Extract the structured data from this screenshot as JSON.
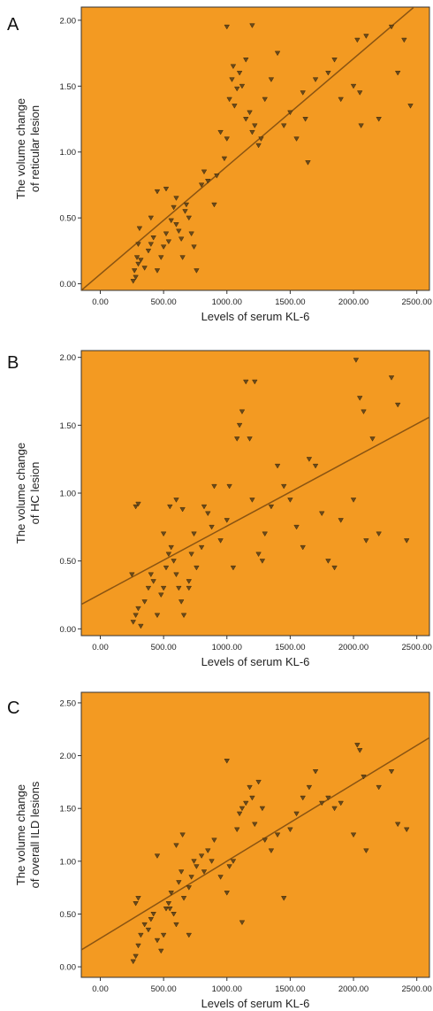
{
  "colors": {
    "plot_background": "#f39a22",
    "marker": "#6b4a1a",
    "fit_line": "#8a5412",
    "axis": "#333333"
  },
  "chart_data": [
    {
      "panel": "A",
      "type": "scatter",
      "xlabel": "Levels of serum KL-6",
      "ylabel": [
        "The volume change",
        "of reticular lesion"
      ],
      "xlim": [
        -150,
        2600
      ],
      "ylim": [
        -0.05,
        2.1
      ],
      "xticks": [
        0,
        500,
        1000,
        1500,
        2000,
        2500
      ],
      "xtick_labels": [
        "0.00",
        "500.00",
        "1000.00",
        "1500.00",
        "2000.00",
        "2500.00"
      ],
      "yticks": [
        0,
        0.5,
        1.0,
        1.5,
        2.0
      ],
      "ytick_labels": [
        "0.00",
        "0.50",
        "1.00",
        "1.50",
        "2.00"
      ],
      "grid": false,
      "fit_line": {
        "x": [
          -150,
          2600
        ],
        "y": [
          -0.05,
          2.2
        ]
      },
      "points": [
        [
          260,
          0.02
        ],
        [
          280,
          0.05
        ],
        [
          270,
          0.1
        ],
        [
          300,
          0.15
        ],
        [
          290,
          0.2
        ],
        [
          320,
          0.18
        ],
        [
          350,
          0.12
        ],
        [
          380,
          0.25
        ],
        [
          400,
          0.3
        ],
        [
          420,
          0.35
        ],
        [
          300,
          0.3
        ],
        [
          310,
          0.42
        ],
        [
          450,
          0.1
        ],
        [
          480,
          0.2
        ],
        [
          500,
          0.28
        ],
        [
          520,
          0.38
        ],
        [
          540,
          0.32
        ],
        [
          560,
          0.48
        ],
        [
          580,
          0.58
        ],
        [
          600,
          0.45
        ],
        [
          620,
          0.4
        ],
        [
          640,
          0.34
        ],
        [
          650,
          0.2
        ],
        [
          670,
          0.55
        ],
        [
          700,
          0.5
        ],
        [
          720,
          0.38
        ],
        [
          740,
          0.28
        ],
        [
          760,
          0.1
        ],
        [
          400,
          0.5
        ],
        [
          450,
          0.7
        ],
        [
          520,
          0.72
        ],
        [
          600,
          0.65
        ],
        [
          680,
          0.6
        ],
        [
          800,
          0.75
        ],
        [
          820,
          0.85
        ],
        [
          850,
          0.78
        ],
        [
          900,
          0.6
        ],
        [
          920,
          0.82
        ],
        [
          950,
          1.15
        ],
        [
          980,
          0.95
        ],
        [
          1000,
          1.1
        ],
        [
          1020,
          1.4
        ],
        [
          1040,
          1.55
        ],
        [
          1060,
          1.35
        ],
        [
          1080,
          1.48
        ],
        [
          1100,
          1.6
        ],
        [
          1120,
          1.5
        ],
        [
          1150,
          1.25
        ],
        [
          1180,
          1.3
        ],
        [
          1200,
          1.15
        ],
        [
          1220,
          1.2
        ],
        [
          1250,
          1.05
        ],
        [
          1270,
          1.1
        ],
        [
          1300,
          1.4
        ],
        [
          1350,
          1.55
        ],
        [
          1400,
          1.75
        ],
        [
          1450,
          1.2
        ],
        [
          1500,
          1.3
        ],
        [
          1550,
          1.1
        ],
        [
          1600,
          1.45
        ],
        [
          1620,
          1.25
        ],
        [
          1640,
          0.92
        ],
        [
          1700,
          1.55
        ],
        [
          1800,
          1.6
        ],
        [
          1850,
          1.7
        ],
        [
          1900,
          1.4
        ],
        [
          2000,
          1.5
        ],
        [
          2030,
          1.85
        ],
        [
          2050,
          1.45
        ],
        [
          2060,
          1.2
        ],
        [
          2100,
          1.88
        ],
        [
          2200,
          1.25
        ],
        [
          2300,
          1.95
        ],
        [
          2350,
          1.6
        ],
        [
          2400,
          1.85
        ],
        [
          2450,
          1.35
        ],
        [
          1000,
          1.95
        ],
        [
          1200,
          1.96
        ],
        [
          1050,
          1.65
        ],
        [
          1150,
          1.7
        ]
      ]
    },
    {
      "panel": "B",
      "type": "scatter",
      "xlabel": "Levels of serum KL-6",
      "ylabel": [
        "The volume change",
        "of HC lesion"
      ],
      "xlim": [
        -150,
        2600
      ],
      "ylim": [
        -0.05,
        2.05
      ],
      "xticks": [
        0,
        500,
        1000,
        1500,
        2000,
        2500
      ],
      "xtick_labels": [
        "0.00",
        "500.00",
        "1000.00",
        "1500.00",
        "2000.00",
        "2500.00"
      ],
      "yticks": [
        0,
        0.5,
        1.0,
        1.5,
        2.0
      ],
      "ytick_labels": [
        "0.00",
        "0.50",
        "1.00",
        "1.50",
        "2.00"
      ],
      "grid": false,
      "fit_line": {
        "x": [
          -150,
          2600
        ],
        "y": [
          0.18,
          1.56
        ]
      },
      "points": [
        [
          260,
          0.05
        ],
        [
          280,
          0.1
        ],
        [
          300,
          0.15
        ],
        [
          320,
          0.02
        ],
        [
          350,
          0.2
        ],
        [
          380,
          0.3
        ],
        [
          400,
          0.4
        ],
        [
          420,
          0.35
        ],
        [
          450,
          0.1
        ],
        [
          480,
          0.25
        ],
        [
          500,
          0.3
        ],
        [
          520,
          0.45
        ],
        [
          540,
          0.55
        ],
        [
          560,
          0.6
        ],
        [
          580,
          0.5
        ],
        [
          600,
          0.4
        ],
        [
          620,
          0.3
        ],
        [
          640,
          0.2
        ],
        [
          660,
          0.1
        ],
        [
          700,
          0.35
        ],
        [
          720,
          0.55
        ],
        [
          740,
          0.7
        ],
        [
          760,
          0.45
        ],
        [
          800,
          0.6
        ],
        [
          820,
          0.9
        ],
        [
          850,
          0.85
        ],
        [
          880,
          0.75
        ],
        [
          900,
          1.05
        ],
        [
          950,
          0.65
        ],
        [
          1000,
          0.8
        ],
        [
          1020,
          1.05
        ],
        [
          1050,
          0.45
        ],
        [
          1080,
          1.4
        ],
        [
          1100,
          1.5
        ],
        [
          1120,
          1.6
        ],
        [
          1150,
          1.82
        ],
        [
          1180,
          1.4
        ],
        [
          1200,
          0.95
        ],
        [
          1220,
          1.82
        ],
        [
          1250,
          0.55
        ],
        [
          1280,
          0.5
        ],
        [
          1300,
          0.7
        ],
        [
          1350,
          0.9
        ],
        [
          1400,
          1.2
        ],
        [
          1450,
          1.05
        ],
        [
          1500,
          0.95
        ],
        [
          1550,
          0.75
        ],
        [
          1600,
          0.6
        ],
        [
          1650,
          1.25
        ],
        [
          1700,
          1.2
        ],
        [
          1750,
          0.85
        ],
        [
          1800,
          0.5
        ],
        [
          1850,
          0.45
        ],
        [
          1900,
          0.8
        ],
        [
          2000,
          0.95
        ],
        [
          2020,
          1.98
        ],
        [
          2050,
          1.7
        ],
        [
          2080,
          1.6
        ],
        [
          2100,
          0.65
        ],
        [
          2150,
          1.4
        ],
        [
          2200,
          0.7
        ],
        [
          2300,
          1.85
        ],
        [
          2350,
          1.65
        ],
        [
          2420,
          0.65
        ],
        [
          280,
          0.9
        ],
        [
          300,
          0.92
        ],
        [
          550,
          0.9
        ],
        [
          600,
          0.95
        ],
        [
          650,
          0.88
        ],
        [
          500,
          0.7
        ],
        [
          250,
          0.4
        ],
        [
          700,
          0.3
        ]
      ]
    },
    {
      "panel": "C",
      "type": "scatter",
      "xlabel": "Levels of serum KL-6",
      "ylabel": [
        "The volume change",
        "of  overall ILD lesions"
      ],
      "xlim": [
        -150,
        2600
      ],
      "ylim": [
        -0.1,
        2.6
      ],
      "xticks": [
        0,
        500,
        1000,
        1500,
        2000,
        2500
      ],
      "xtick_labels": [
        "0.00",
        "500.00",
        "1000.00",
        "1500.00",
        "2000.00",
        "2500.00"
      ],
      "yticks": [
        0,
        0.5,
        1.0,
        1.5,
        2.0,
        2.5
      ],
      "ytick_labels": [
        "0.00",
        "0.50",
        "1.00",
        "1.50",
        "2.00",
        "2.50"
      ],
      "grid": false,
      "fit_line": {
        "x": [
          -150,
          2600
        ],
        "y": [
          0.16,
          2.17
        ]
      },
      "points": [
        [
          260,
          0.05
        ],
        [
          280,
          0.1
        ],
        [
          300,
          0.2
        ],
        [
          320,
          0.3
        ],
        [
          350,
          0.4
        ],
        [
          380,
          0.35
        ],
        [
          400,
          0.45
        ],
        [
          420,
          0.5
        ],
        [
          450,
          0.25
        ],
        [
          480,
          0.15
        ],
        [
          500,
          0.3
        ],
        [
          520,
          0.55
        ],
        [
          540,
          0.6
        ],
        [
          560,
          0.7
        ],
        [
          580,
          0.5
        ],
        [
          600,
          0.4
        ],
        [
          620,
          0.8
        ],
        [
          640,
          0.9
        ],
        [
          660,
          0.65
        ],
        [
          700,
          0.75
        ],
        [
          720,
          0.85
        ],
        [
          740,
          1.0
        ],
        [
          760,
          0.95
        ],
        [
          800,
          1.05
        ],
        [
          820,
          0.9
        ],
        [
          850,
          1.1
        ],
        [
          880,
          1.0
        ],
        [
          900,
          1.2
        ],
        [
          950,
          0.85
        ],
        [
          1000,
          0.7
        ],
        [
          1020,
          0.95
        ],
        [
          1050,
          1.0
        ],
        [
          1080,
          1.3
        ],
        [
          1100,
          1.45
        ],
        [
          1120,
          1.5
        ],
        [
          1150,
          1.55
        ],
        [
          1180,
          1.7
        ],
        [
          1200,
          1.6
        ],
        [
          1220,
          1.35
        ],
        [
          1250,
          1.75
        ],
        [
          1280,
          1.5
        ],
        [
          1300,
          1.2
        ],
        [
          1350,
          1.1
        ],
        [
          1400,
          1.25
        ],
        [
          1450,
          0.65
        ],
        [
          1500,
          1.3
        ],
        [
          1550,
          1.45
        ],
        [
          1600,
          1.6
        ],
        [
          1650,
          1.7
        ],
        [
          1700,
          1.85
        ],
        [
          1750,
          1.55
        ],
        [
          1800,
          1.6
        ],
        [
          1850,
          1.5
        ],
        [
          1900,
          1.55
        ],
        [
          2000,
          1.25
        ],
        [
          2030,
          2.1
        ],
        [
          2050,
          2.05
        ],
        [
          2080,
          1.8
        ],
        [
          2100,
          1.1
        ],
        [
          2200,
          1.7
        ],
        [
          2300,
          1.85
        ],
        [
          2350,
          1.35
        ],
        [
          2420,
          1.3
        ],
        [
          1000,
          1.95
        ],
        [
          280,
          0.6
        ],
        [
          300,
          0.65
        ],
        [
          450,
          1.05
        ],
        [
          600,
          1.15
        ],
        [
          650,
          1.25
        ],
        [
          700,
          0.3
        ],
        [
          550,
          0.55
        ],
        [
          1120,
          0.42
        ]
      ]
    }
  ]
}
